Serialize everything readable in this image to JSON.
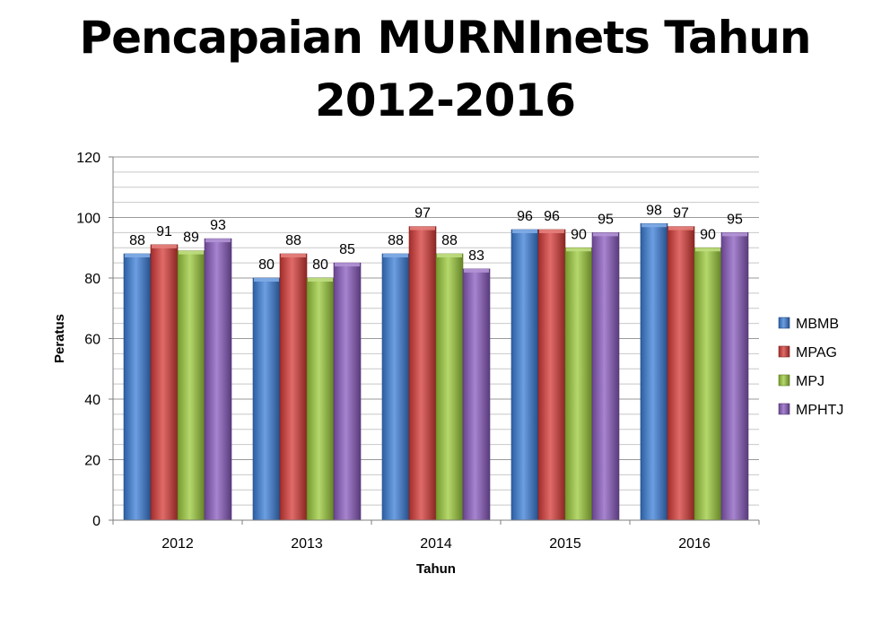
{
  "title_line1": "Pencapaian MURNInets Tahun",
  "title_line2": "2012-2016",
  "chart_data": {
    "type": "bar",
    "title": "Pencapaian MURNInets Tahun 2012-2016",
    "xlabel": "Tahun",
    "ylabel": "Peratus",
    "categories": [
      "2012",
      "2013",
      "2014",
      "2015",
      "2016"
    ],
    "ylim": [
      0,
      120
    ],
    "yticks": [
      0,
      20,
      40,
      60,
      80,
      100,
      120
    ],
    "grid": true,
    "legend_position": "right",
    "series": [
      {
        "name": "MBMB",
        "color": "#3b7dd8",
        "values": [
          88,
          80,
          88,
          96,
          98
        ]
      },
      {
        "name": "MPAG",
        "color": "#d63a36",
        "values": [
          91,
          88,
          97,
          96,
          97
        ]
      },
      {
        "name": "MPJ",
        "color": "#9ccb3b",
        "values": [
          89,
          80,
          88,
          90,
          90
        ]
      },
      {
        "name": "MPHTJ",
        "color": "#8a5bbf",
        "values": [
          93,
          85,
          83,
          95,
          95
        ]
      }
    ]
  }
}
